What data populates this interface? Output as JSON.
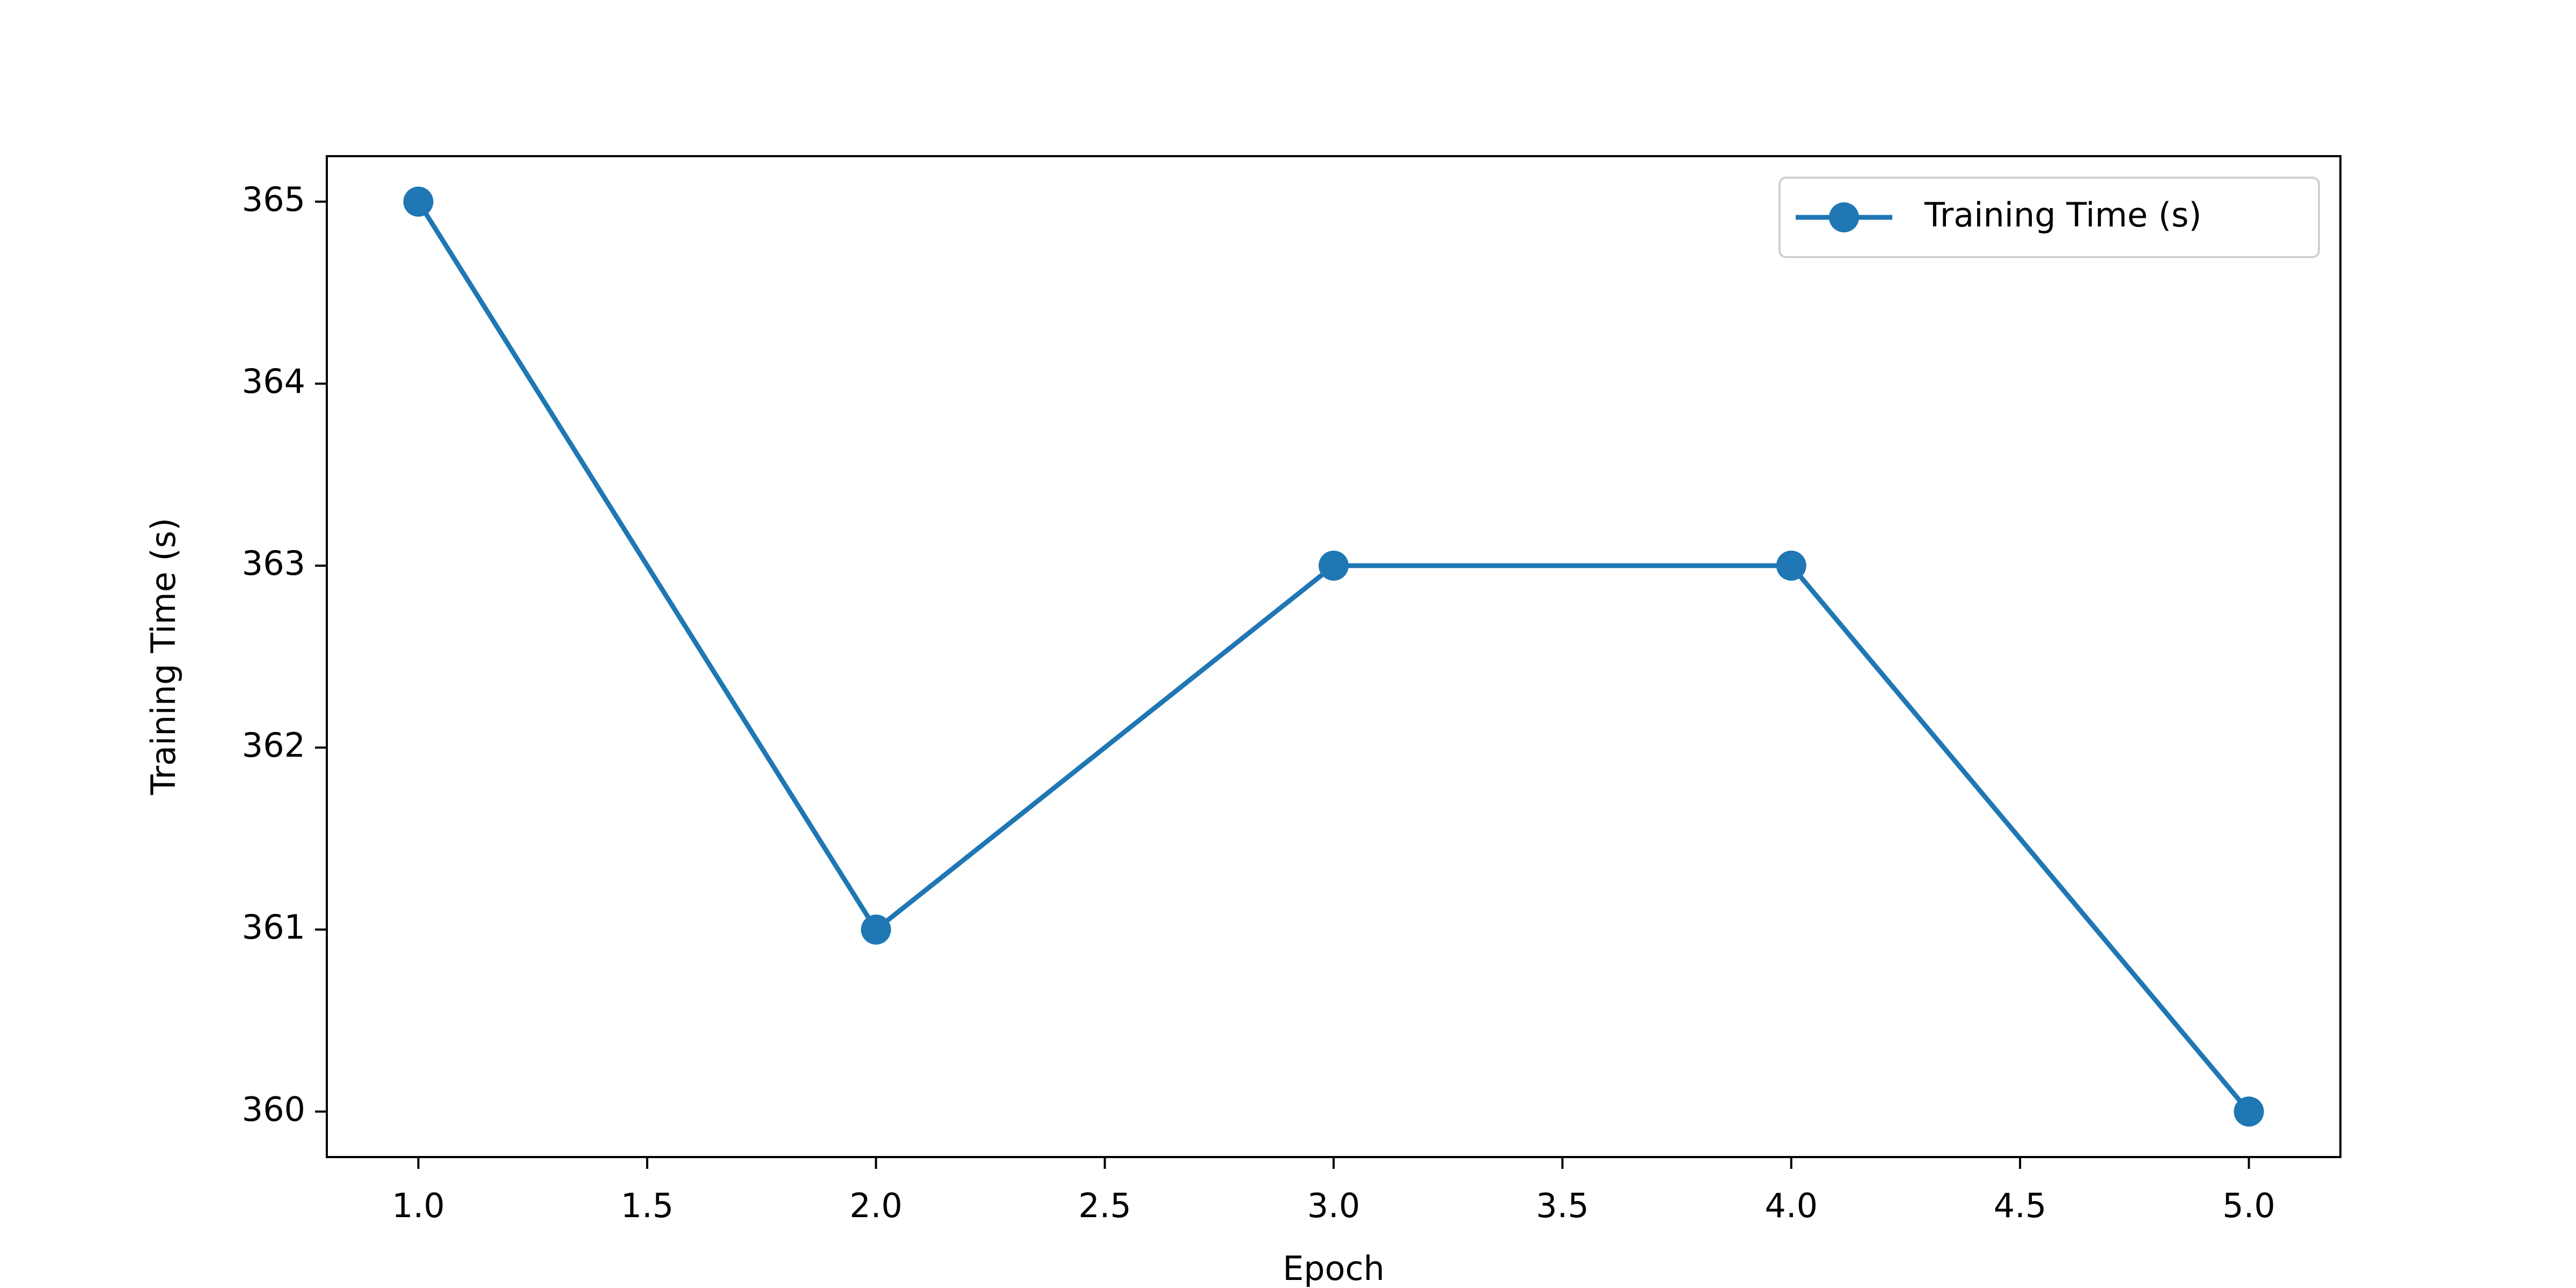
{
  "chart_data": {
    "type": "line",
    "x": [
      1,
      2,
      3,
      4,
      5
    ],
    "series": [
      {
        "name": "Training Time (s)",
        "color": "#1f77b4",
        "values": [
          365,
          361,
          363,
          363,
          360
        ]
      }
    ],
    "xlabel": "Epoch",
    "ylabel": "Training Time (s)",
    "xlim": [
      0.8,
      5.2
    ],
    "ylim": [
      359.75,
      365.25
    ],
    "xticks": [
      {
        "value": 1,
        "label": "1.0"
      },
      1.5,
      {
        "value": 2,
        "label": "2.0"
      },
      2.5,
      {
        "value": 3,
        "label": "3.0"
      },
      3.5,
      {
        "value": 4,
        "label": "4.0"
      },
      4.5,
      {
        "value": 5,
        "label": "5.0"
      }
    ],
    "yticks": [
      360,
      361,
      362,
      363,
      364,
      365
    ],
    "legend": "upper right",
    "grid": false
  }
}
